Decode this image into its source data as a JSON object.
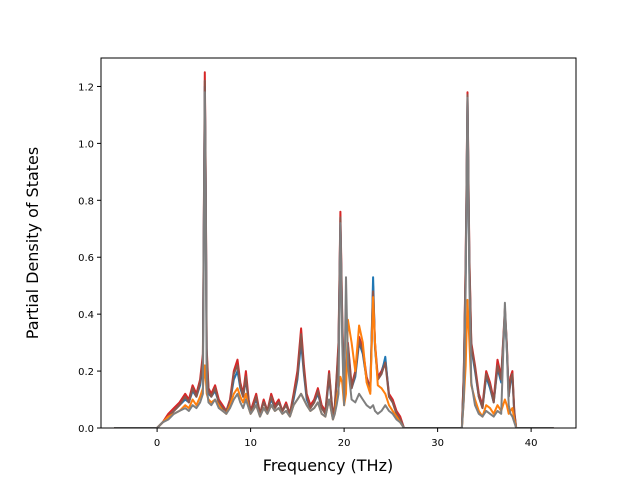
{
  "chart_data": {
    "type": "line",
    "title": "",
    "xlabel": "Frequency (THz)",
    "ylabel": "Partial Density of States",
    "xlim": [
      -6.0,
      44.8
    ],
    "ylim": [
      0.0,
      1.3
    ],
    "xticks": [
      0,
      10,
      20,
      30,
      40
    ],
    "yticks": [
      0.0,
      0.2,
      0.4,
      0.6,
      0.8,
      1.0,
      1.2
    ],
    "xtick_labels": [
      "0",
      "10",
      "20",
      "30",
      "40"
    ],
    "ytick_labels": [
      "0.0",
      "0.2",
      "0.4",
      "0.6",
      "0.8",
      "1.0",
      "1.2"
    ],
    "grid": false,
    "legend": "none",
    "series": [
      {
        "color": "#d62728",
        "x": [
          -4.6,
          0.0,
          0.6,
          1.2,
          1.8,
          2.4,
          3.0,
          3.4,
          3.8,
          4.2,
          4.6,
          4.9,
          5.1,
          5.2,
          5.3,
          5.5,
          5.8,
          6.2,
          6.6,
          7.0,
          7.4,
          7.8,
          8.2,
          8.6,
          8.9,
          9.2,
          9.5,
          9.8,
          10.0,
          10.2,
          10.6,
          11.0,
          11.4,
          11.8,
          12.2,
          12.6,
          13.0,
          13.4,
          13.8,
          14.2,
          14.6,
          15.0,
          15.4,
          15.7,
          16.0,
          16.4,
          16.8,
          17.2,
          17.6,
          18.0,
          18.4,
          18.8,
          19.0,
          19.2,
          19.4,
          19.6,
          19.8,
          20.0,
          20.2,
          20.4,
          20.8,
          21.2,
          21.6,
          22.0,
          22.4,
          22.8,
          23.1,
          23.3,
          23.6,
          24.0,
          24.4,
          24.8,
          25.2,
          25.6,
          26.0,
          26.4,
          27.0,
          32.6,
          32.8,
          33.0,
          33.2,
          33.4,
          33.6,
          34.0,
          34.4,
          34.8,
          35.2,
          35.6,
          36.0,
          36.4,
          36.8,
          37.2,
          37.4,
          37.6,
          37.8,
          38.0,
          38.2,
          38.4,
          39.0,
          42.4
        ],
        "y": [
          0.0,
          0.0,
          0.02,
          0.05,
          0.07,
          0.09,
          0.12,
          0.1,
          0.15,
          0.12,
          0.17,
          0.26,
          1.25,
          0.9,
          0.28,
          0.14,
          0.12,
          0.15,
          0.1,
          0.08,
          0.06,
          0.1,
          0.2,
          0.24,
          0.16,
          0.12,
          0.2,
          0.1,
          0.06,
          0.08,
          0.12,
          0.05,
          0.1,
          0.06,
          0.12,
          0.08,
          0.1,
          0.06,
          0.09,
          0.05,
          0.12,
          0.2,
          0.35,
          0.22,
          0.12,
          0.08,
          0.1,
          0.14,
          0.08,
          0.06,
          0.2,
          0.04,
          0.08,
          0.18,
          0.3,
          0.76,
          0.4,
          0.1,
          0.2,
          0.3,
          0.15,
          0.2,
          0.32,
          0.28,
          0.18,
          0.14,
          0.5,
          0.3,
          0.18,
          0.2,
          0.24,
          0.12,
          0.1,
          0.06,
          0.04,
          0.0,
          0.0,
          0.0,
          0.2,
          0.6,
          1.18,
          0.6,
          0.3,
          0.22,
          0.12,
          0.08,
          0.2,
          0.16,
          0.1,
          0.24,
          0.18,
          0.42,
          0.3,
          0.12,
          0.18,
          0.2,
          0.06,
          0.0,
          0.0,
          0.0
        ]
      },
      {
        "color": "#1f77b4",
        "x": [
          -4.6,
          0.0,
          0.6,
          1.2,
          1.8,
          2.4,
          3.0,
          3.4,
          3.8,
          4.2,
          4.6,
          4.9,
          5.1,
          5.2,
          5.3,
          5.5,
          5.8,
          6.2,
          6.6,
          7.0,
          7.4,
          7.8,
          8.2,
          8.6,
          8.9,
          9.2,
          9.5,
          9.8,
          10.0,
          10.2,
          10.6,
          11.0,
          11.4,
          11.8,
          12.2,
          12.6,
          13.0,
          13.4,
          13.8,
          14.2,
          14.6,
          15.0,
          15.4,
          15.7,
          16.0,
          16.4,
          16.8,
          17.2,
          17.6,
          18.0,
          18.4,
          18.8,
          19.0,
          19.2,
          19.4,
          19.6,
          19.8,
          20.0,
          20.2,
          20.4,
          20.8,
          21.2,
          21.6,
          22.0,
          22.4,
          22.8,
          23.1,
          23.3,
          23.6,
          24.0,
          24.4,
          24.8,
          25.2,
          25.6,
          26.0,
          26.4,
          27.0,
          32.6,
          32.8,
          33.0,
          33.2,
          33.4,
          33.6,
          34.0,
          34.4,
          34.8,
          35.2,
          35.6,
          36.0,
          36.4,
          36.8,
          37.2,
          37.4,
          37.6,
          37.8,
          38.0,
          38.2,
          38.4,
          39.0,
          42.4
        ],
        "y": [
          0.0,
          0.0,
          0.02,
          0.04,
          0.06,
          0.08,
          0.1,
          0.09,
          0.13,
          0.11,
          0.15,
          0.22,
          1.2,
          0.85,
          0.24,
          0.12,
          0.11,
          0.13,
          0.09,
          0.07,
          0.06,
          0.09,
          0.17,
          0.2,
          0.14,
          0.11,
          0.17,
          0.09,
          0.06,
          0.07,
          0.1,
          0.05,
          0.09,
          0.06,
          0.1,
          0.07,
          0.09,
          0.06,
          0.08,
          0.05,
          0.1,
          0.17,
          0.3,
          0.19,
          0.1,
          0.07,
          0.09,
          0.12,
          0.07,
          0.05,
          0.18,
          0.04,
          0.07,
          0.16,
          0.27,
          0.72,
          0.36,
          0.09,
          0.18,
          0.28,
          0.14,
          0.18,
          0.3,
          0.26,
          0.17,
          0.13,
          0.53,
          0.28,
          0.17,
          0.19,
          0.25,
          0.11,
          0.09,
          0.05,
          0.03,
          0.0,
          0.0,
          0.0,
          0.18,
          0.55,
          1.15,
          0.55,
          0.28,
          0.2,
          0.11,
          0.07,
          0.18,
          0.14,
          0.09,
          0.21,
          0.16,
          0.4,
          0.28,
          0.11,
          0.16,
          0.18,
          0.05,
          0.0,
          0.0,
          0.0
        ]
      },
      {
        "color": "#8c564b",
        "x": [
          -4.6,
          0.0,
          0.6,
          1.2,
          1.8,
          2.4,
          3.0,
          3.4,
          3.8,
          4.2,
          4.6,
          4.9,
          5.1,
          5.2,
          5.3,
          5.5,
          5.8,
          6.2,
          6.6,
          7.0,
          7.4,
          7.8,
          8.2,
          8.6,
          8.9,
          9.2,
          9.5,
          9.8,
          10.0,
          10.2,
          10.6,
          11.0,
          11.4,
          11.8,
          12.2,
          12.6,
          13.0,
          13.4,
          13.8,
          14.2,
          14.6,
          15.0,
          15.4,
          15.7,
          16.0,
          16.4,
          16.8,
          17.2,
          17.6,
          18.0,
          18.4,
          18.8,
          19.0,
          19.2,
          19.4,
          19.6,
          19.8,
          20.0,
          20.2,
          20.4,
          20.8,
          21.2,
          21.6,
          22.0,
          22.4,
          22.8,
          23.1,
          23.3,
          23.6,
          24.0,
          24.4,
          24.8,
          25.2,
          25.6,
          26.0,
          26.4,
          27.0,
          32.6,
          32.8,
          33.0,
          33.2,
          33.4,
          33.6,
          34.0,
          34.4,
          34.8,
          35.2,
          35.6,
          36.0,
          36.4,
          36.8,
          37.2,
          37.4,
          37.6,
          37.8,
          38.0,
          38.2,
          38.4,
          39.0,
          42.4
        ],
        "y": [
          0.0,
          0.0,
          0.02,
          0.04,
          0.06,
          0.08,
          0.11,
          0.09,
          0.14,
          0.11,
          0.16,
          0.24,
          1.22,
          0.88,
          0.26,
          0.13,
          0.11,
          0.14,
          0.09,
          0.07,
          0.06,
          0.09,
          0.19,
          0.22,
          0.15,
          0.11,
          0.18,
          0.09,
          0.06,
          0.07,
          0.11,
          0.05,
          0.09,
          0.06,
          0.11,
          0.07,
          0.09,
          0.06,
          0.08,
          0.05,
          0.11,
          0.18,
          0.33,
          0.2,
          0.11,
          0.07,
          0.09,
          0.13,
          0.07,
          0.05,
          0.19,
          0.04,
          0.07,
          0.17,
          0.28,
          0.74,
          0.38,
          0.09,
          0.19,
          0.29,
          0.14,
          0.19,
          0.31,
          0.27,
          0.17,
          0.13,
          0.48,
          0.29,
          0.17,
          0.19,
          0.23,
          0.11,
          0.09,
          0.05,
          0.03,
          0.0,
          0.0,
          0.0,
          0.19,
          0.58,
          1.17,
          0.58,
          0.29,
          0.21,
          0.11,
          0.07,
          0.19,
          0.15,
          0.09,
          0.22,
          0.17,
          0.41,
          0.29,
          0.11,
          0.17,
          0.19,
          0.05,
          0.0,
          0.0,
          0.0
        ]
      },
      {
        "color": "#ff7f0e",
        "x": [
          -4.6,
          0.0,
          0.6,
          1.2,
          1.8,
          2.4,
          3.0,
          3.4,
          3.8,
          4.2,
          4.6,
          4.9,
          5.1,
          5.2,
          5.3,
          5.5,
          5.8,
          6.2,
          6.6,
          7.0,
          7.4,
          7.8,
          8.2,
          8.6,
          8.9,
          9.2,
          9.5,
          9.8,
          10.0,
          10.2,
          10.6,
          11.0,
          11.4,
          11.8,
          12.2,
          12.6,
          13.0,
          13.4,
          13.8,
          14.2,
          14.6,
          15.0,
          15.4,
          15.7,
          16.0,
          16.4,
          16.8,
          17.2,
          17.6,
          18.0,
          18.4,
          18.8,
          19.0,
          19.2,
          19.4,
          19.6,
          19.8,
          20.0,
          20.2,
          20.4,
          20.8,
          21.2,
          21.6,
          22.0,
          22.4,
          22.8,
          23.1,
          23.3,
          23.6,
          24.0,
          24.4,
          24.8,
          25.2,
          25.6,
          26.0,
          26.4,
          27.0,
          32.6,
          32.8,
          33.0,
          33.2,
          33.4,
          33.6,
          34.0,
          34.4,
          34.8,
          35.2,
          35.6,
          36.0,
          36.4,
          36.8,
          37.2,
          37.4,
          37.6,
          37.8,
          38.0,
          38.2,
          38.4,
          39.0,
          42.4
        ],
        "y": [
          0.0,
          0.0,
          0.02,
          0.04,
          0.05,
          0.06,
          0.08,
          0.07,
          0.1,
          0.08,
          0.11,
          0.14,
          0.22,
          0.18,
          0.12,
          0.1,
          0.09,
          0.1,
          0.08,
          0.06,
          0.05,
          0.08,
          0.12,
          0.14,
          0.11,
          0.09,
          0.12,
          0.07,
          0.05,
          0.06,
          0.08,
          0.04,
          0.07,
          0.05,
          0.08,
          0.06,
          0.07,
          0.05,
          0.06,
          0.04,
          0.08,
          0.1,
          0.12,
          0.1,
          0.08,
          0.06,
          0.07,
          0.09,
          0.05,
          0.04,
          0.1,
          0.03,
          0.05,
          0.1,
          0.14,
          0.18,
          0.16,
          0.08,
          0.12,
          0.38,
          0.3,
          0.2,
          0.36,
          0.3,
          0.16,
          0.12,
          0.46,
          0.3,
          0.15,
          0.14,
          0.12,
          0.08,
          0.06,
          0.04,
          0.02,
          0.0,
          0.0,
          0.0,
          0.1,
          0.22,
          0.45,
          0.3,
          0.15,
          0.1,
          0.06,
          0.04,
          0.08,
          0.07,
          0.05,
          0.08,
          0.06,
          0.1,
          0.08,
          0.05,
          0.06,
          0.07,
          0.03,
          0.0,
          0.0,
          0.0
        ]
      },
      {
        "color": "#7f7f7f",
        "x": [
          -4.6,
          0.0,
          0.6,
          1.2,
          1.8,
          2.4,
          3.0,
          3.4,
          3.8,
          4.2,
          4.6,
          4.9,
          5.1,
          5.2,
          5.3,
          5.5,
          5.8,
          6.2,
          6.6,
          7.0,
          7.4,
          7.8,
          8.2,
          8.6,
          8.9,
          9.2,
          9.5,
          9.8,
          10.0,
          10.2,
          10.6,
          11.0,
          11.4,
          11.8,
          12.2,
          12.6,
          13.0,
          13.4,
          13.8,
          14.2,
          14.6,
          15.0,
          15.4,
          15.7,
          16.0,
          16.4,
          16.8,
          17.2,
          17.6,
          18.0,
          18.4,
          18.8,
          19.0,
          19.2,
          19.4,
          19.6,
          19.8,
          20.0,
          20.2,
          20.4,
          20.8,
          21.2,
          21.6,
          22.0,
          22.4,
          22.8,
          23.1,
          23.3,
          23.6,
          24.0,
          24.4,
          24.8,
          25.2,
          25.6,
          26.0,
          26.4,
          27.0,
          32.6,
          32.8,
          33.0,
          33.2,
          33.4,
          33.6,
          34.0,
          34.4,
          34.8,
          35.2,
          35.6,
          36.0,
          36.4,
          36.8,
          37.2,
          37.4,
          37.6,
          37.8,
          38.0,
          38.2,
          38.4,
          39.0,
          42.4
        ],
        "y": [
          0.0,
          0.0,
          0.02,
          0.03,
          0.05,
          0.06,
          0.07,
          0.06,
          0.08,
          0.07,
          0.09,
          0.12,
          1.18,
          0.8,
          0.14,
          0.09,
          0.08,
          0.1,
          0.07,
          0.06,
          0.05,
          0.07,
          0.1,
          0.12,
          0.09,
          0.07,
          0.1,
          0.07,
          0.05,
          0.06,
          0.08,
          0.04,
          0.07,
          0.05,
          0.08,
          0.06,
          0.07,
          0.05,
          0.06,
          0.04,
          0.08,
          0.1,
          0.12,
          0.1,
          0.08,
          0.06,
          0.07,
          0.09,
          0.05,
          0.04,
          0.1,
          0.03,
          0.05,
          0.08,
          0.12,
          0.72,
          0.3,
          0.08,
          0.53,
          0.22,
          0.1,
          0.09,
          0.12,
          0.1,
          0.08,
          0.07,
          0.08,
          0.06,
          0.05,
          0.06,
          0.08,
          0.06,
          0.05,
          0.03,
          0.02,
          0.0,
          0.0,
          0.0,
          0.1,
          0.5,
          1.16,
          0.5,
          0.16,
          0.08,
          0.05,
          0.04,
          0.06,
          0.05,
          0.04,
          0.06,
          0.05,
          0.44,
          0.28,
          0.08,
          0.05,
          0.04,
          0.02,
          0.0,
          0.0,
          0.0
        ]
      }
    ]
  }
}
